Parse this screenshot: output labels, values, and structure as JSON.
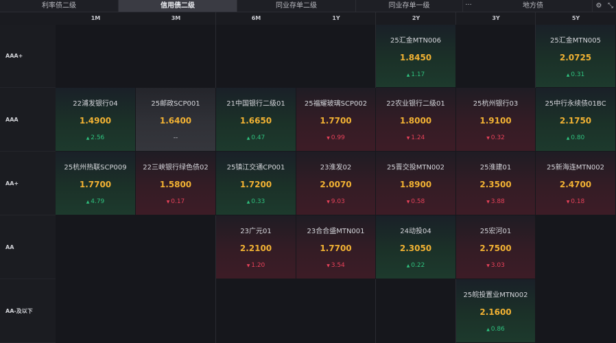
{
  "tabs": [
    {
      "label": "利率债二级",
      "active": false
    },
    {
      "label": "信用债二级",
      "active": true
    },
    {
      "label": "同业存单二级",
      "active": false
    },
    {
      "label": "同业存单一级",
      "active": false
    },
    {
      "label": "地方债",
      "active": false
    }
  ],
  "more_label": "···",
  "columns": [
    "1M",
    "3M",
    "6M",
    "1Y",
    "2Y",
    "3Y",
    "5Y"
  ],
  "rows": [
    "AAA+",
    "AAA",
    "AA+",
    "AA",
    "AA-及以下"
  ],
  "colors": {
    "up": "#2fc17e",
    "down": "#e8425a",
    "value": "#f2b233"
  },
  "cells": [
    {
      "row": 0,
      "col": 4,
      "name": "25汇金MTN006",
      "value": "1.8450",
      "change": "1.17",
      "dir": "up"
    },
    {
      "row": 0,
      "col": 6,
      "name": "25汇金MTN005",
      "value": "2.0725",
      "change": "0.31",
      "dir": "up"
    },
    {
      "row": 1,
      "col": 0,
      "name": "22浦发银行04",
      "value": "1.4900",
      "change": "2.56",
      "dir": "up"
    },
    {
      "row": 1,
      "col": 1,
      "name": "25邮政SCP001",
      "value": "1.6400",
      "change": "--",
      "dir": "flat"
    },
    {
      "row": 1,
      "col": 2,
      "name": "21中国银行二级01",
      "value": "1.6650",
      "change": "0.47",
      "dir": "up"
    },
    {
      "row": 1,
      "col": 3,
      "name": "25福耀玻璃SCP002",
      "value": "1.7700",
      "change": "0.99",
      "dir": "down"
    },
    {
      "row": 1,
      "col": 4,
      "name": "22农业银行二级01",
      "value": "1.8000",
      "change": "1.24",
      "dir": "down"
    },
    {
      "row": 1,
      "col": 5,
      "name": "25杭州银行03",
      "value": "1.9100",
      "change": "0.32",
      "dir": "down"
    },
    {
      "row": 1,
      "col": 6,
      "name": "25中行永续债01BC",
      "value": "2.1750",
      "change": "0.80",
      "dir": "up"
    },
    {
      "row": 2,
      "col": 0,
      "name": "25杭州热联SCP009",
      "value": "1.7700",
      "change": "4.79",
      "dir": "up"
    },
    {
      "row": 2,
      "col": 1,
      "name": "22三峡银行绿色债02",
      "value": "1.5800",
      "change": "0.17",
      "dir": "down"
    },
    {
      "row": 2,
      "col": 2,
      "name": "25镇江交通CP001",
      "value": "1.7200",
      "change": "0.33",
      "dir": "up"
    },
    {
      "row": 2,
      "col": 3,
      "name": "23淮发02",
      "value": "2.0070",
      "change": "9.03",
      "dir": "down"
    },
    {
      "row": 2,
      "col": 4,
      "name": "25晋交投MTN002",
      "value": "1.8900",
      "change": "0.58",
      "dir": "down"
    },
    {
      "row": 2,
      "col": 5,
      "name": "25淮建01",
      "value": "2.3500",
      "change": "3.88",
      "dir": "down"
    },
    {
      "row": 2,
      "col": 6,
      "name": "25新海连MTN002",
      "value": "2.4700",
      "change": "0.18",
      "dir": "down"
    },
    {
      "row": 3,
      "col": 2,
      "name": "23广元01",
      "value": "2.2100",
      "change": "1.20",
      "dir": "down"
    },
    {
      "row": 3,
      "col": 3,
      "name": "23合合盛MTN001",
      "value": "1.7700",
      "change": "3.54",
      "dir": "down"
    },
    {
      "row": 3,
      "col": 4,
      "name": "24动投04",
      "value": "2.3050",
      "change": "0.22",
      "dir": "up"
    },
    {
      "row": 3,
      "col": 5,
      "name": "25宏河01",
      "value": "2.7500",
      "change": "3.03",
      "dir": "down"
    },
    {
      "row": 4,
      "col": 5,
      "name": "25皖投置业MTN002",
      "value": "2.1600",
      "change": "0.86",
      "dir": "up"
    }
  ]
}
